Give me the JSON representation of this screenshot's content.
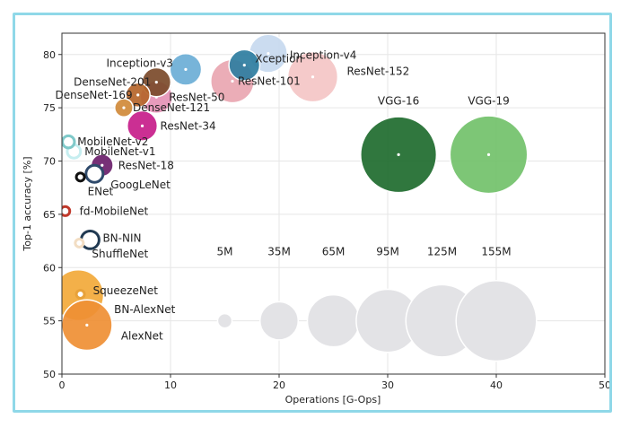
{
  "chart_data": {
    "type": "scatter",
    "title": "",
    "xlabel": "Operations [G-Ops]",
    "ylabel": "Top-1 accuracy [%]",
    "xlim": [
      0,
      50
    ],
    "ylim": [
      50,
      82
    ],
    "xticks": [
      "0",
      "10",
      "20",
      "30",
      "40",
      "50"
    ],
    "yticks": [
      "50",
      "55",
      "60",
      "65",
      "70",
      "75",
      "80"
    ],
    "grid": true,
    "points": [
      {
        "name": "Inception-v4",
        "x": 19.0,
        "y": 80.1,
        "params_m": 35,
        "color": "#c7d9ef"
      },
      {
        "name": "Xception",
        "x": 16.8,
        "y": 79.0,
        "params_m": 22.8,
        "color": "#2e7da0"
      },
      {
        "name": "ResNet-152",
        "x": 23.1,
        "y": 77.9,
        "params_m": 60,
        "color": "#f4c5c6"
      },
      {
        "name": "ResNet-101",
        "x": 15.7,
        "y": 77.5,
        "params_m": 45,
        "color": "#e9a6b1"
      },
      {
        "name": "Inception-v3",
        "x": 11.4,
        "y": 78.6,
        "params_m": 24,
        "color": "#6baed6"
      },
      {
        "name": "DenseNet-201",
        "x": 8.7,
        "y": 77.4,
        "params_m": 20,
        "color": "#7b4a2a"
      },
      {
        "name": "DenseNet-169",
        "x": 7.0,
        "y": 76.2,
        "params_m": 14,
        "color": "#b5652a"
      },
      {
        "name": "DenseNet-121",
        "x": 5.7,
        "y": 75.0,
        "params_m": 8,
        "color": "#d08a3a"
      },
      {
        "name": "ResNet-50",
        "x": 8.7,
        "y": 76.0,
        "params_m": 25,
        "color": "#e593b6"
      },
      {
        "name": "ResNet-34",
        "x": 7.4,
        "y": 73.3,
        "params_m": 21.8,
        "color": "#c71d8a"
      },
      {
        "name": "VGG-16",
        "x": 31.0,
        "y": 70.6,
        "params_m": 138,
        "color": "#1e6b2e"
      },
      {
        "name": "VGG-19",
        "x": 39.3,
        "y": 70.6,
        "params_m": 144,
        "color": "#72c16a"
      },
      {
        "name": "MobileNet-v2",
        "x": 0.6,
        "y": 71.8,
        "params_m": 3.5,
        "color": "#7fc9c9"
      },
      {
        "name": "MobileNet-v1",
        "x": 1.1,
        "y": 70.9,
        "params_m": 4.2,
        "color": "#c6eef0"
      },
      {
        "name": "ResNet-18",
        "x": 3.7,
        "y": 69.6,
        "params_m": 11.7,
        "color": "#6b1f6b"
      },
      {
        "name": "GoogLeNet",
        "x": 3.0,
        "y": 68.8,
        "params_m": 7,
        "color": "#2f4a6b"
      },
      {
        "name": "ENet",
        "x": 1.7,
        "y": 68.5,
        "params_m": 0.4,
        "color": "#111111"
      },
      {
        "name": "fd-MobileNet",
        "x": 0.3,
        "y": 65.3,
        "params_m": 2,
        "color": "#c0392b"
      },
      {
        "name": "BN-NIN",
        "x": 2.6,
        "y": 62.6,
        "params_m": 7.6,
        "color": "#213a52"
      },
      {
        "name": "ShuffleNet",
        "x": 1.6,
        "y": 62.3,
        "params_m": 1.4,
        "color": "#f2ddc3"
      },
      {
        "name": "SqueezeNet",
        "x": 1.7,
        "y": 57.5,
        "params_m": 1.2,
        "color": "#e8a23a"
      },
      {
        "name": "BN-AlexNet",
        "x": 1.5,
        "y": 57.4,
        "params_m": 62,
        "color": "#f2a93a"
      },
      {
        "name": "AlexNet",
        "x": 2.3,
        "y": 54.6,
        "params_m": 61,
        "color": "#ef8f34"
      }
    ],
    "size_legend": [
      {
        "label": "5M",
        "x": 15,
        "y": 55,
        "params_m": 5
      },
      {
        "label": "35M",
        "x": 20,
        "y": 55,
        "params_m": 35
      },
      {
        "label": "65M",
        "x": 25,
        "y": 55,
        "params_m": 65
      },
      {
        "label": "95M",
        "x": 30,
        "y": 55,
        "params_m": 95
      },
      {
        "label": "125M",
        "x": 35,
        "y": 55,
        "params_m": 125
      },
      {
        "label": "155M",
        "x": 40,
        "y": 55,
        "params_m": 155
      }
    ]
  }
}
